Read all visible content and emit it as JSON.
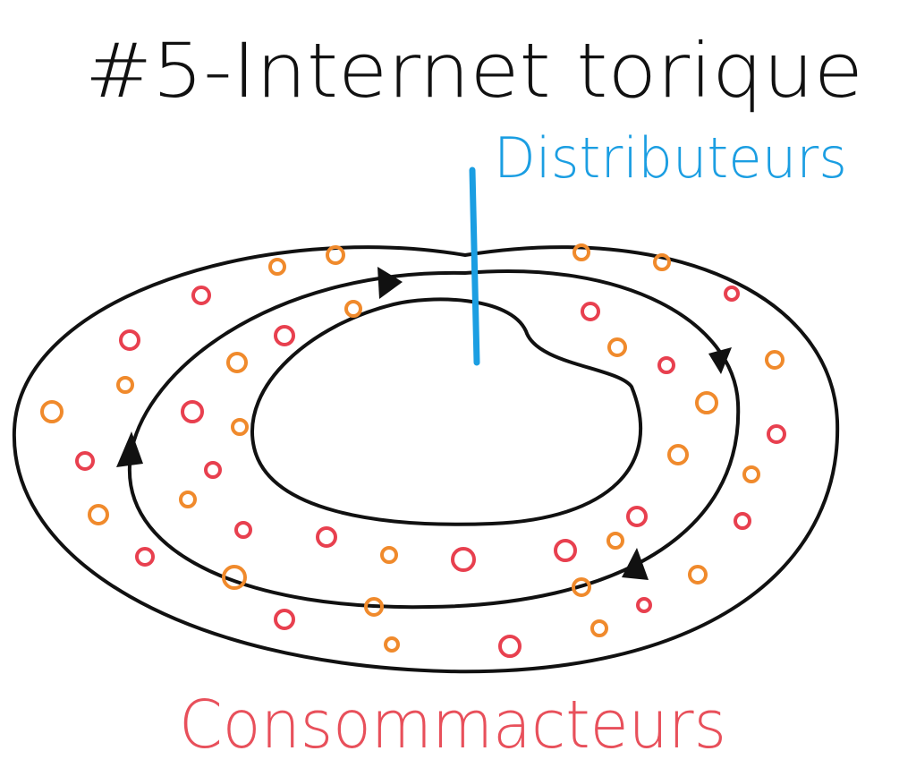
{
  "title": "#5-Internet torique",
  "labels": {
    "top": "Distributeurs",
    "bottom": "Consommacteurs"
  }
}
